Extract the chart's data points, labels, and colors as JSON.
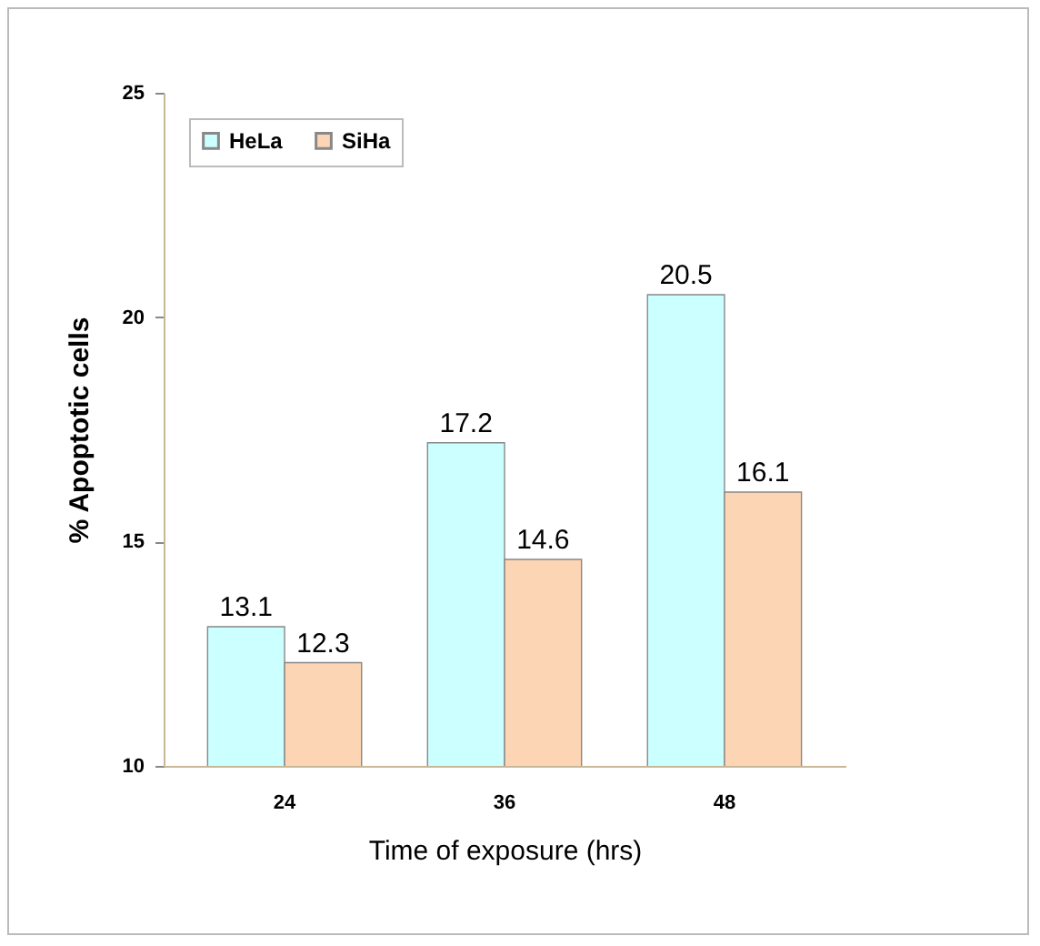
{
  "chart_data": {
    "type": "bar",
    "xlabel": "Time of exposure (hrs)",
    "ylabel": "% Apoptotic cells",
    "categories": [
      "24",
      "36",
      "48"
    ],
    "series": [
      {
        "name": "HeLa",
        "color": "#ccffff",
        "values": [
          13.1,
          17.2,
          20.5
        ]
      },
      {
        "name": "SiHa",
        "color": "#fcd5b4",
        "values": [
          12.3,
          14.6,
          16.1
        ]
      }
    ],
    "ylim": [
      10,
      25
    ],
    "yticks": [
      10,
      15,
      20,
      25
    ],
    "data_labels": true,
    "legend": "top left",
    "grid": false
  }
}
